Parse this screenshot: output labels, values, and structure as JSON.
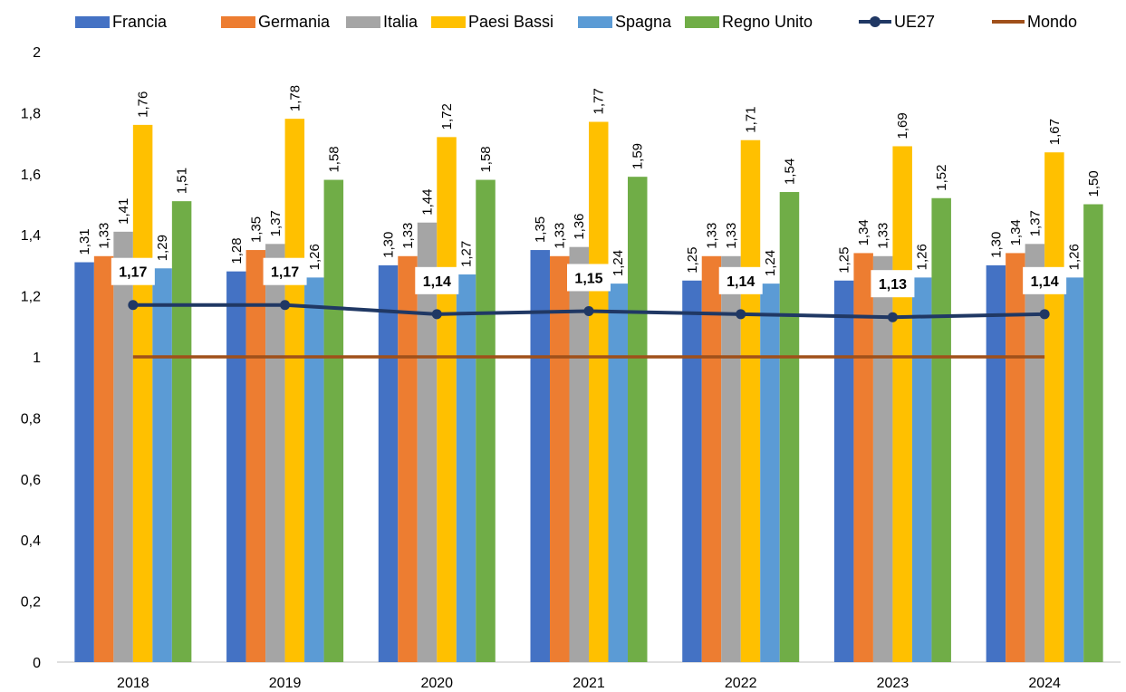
{
  "chart_data": {
    "type": "bar",
    "categories": [
      "2018",
      "2019",
      "2020",
      "2021",
      "2022",
      "2023",
      "2024"
    ],
    "series": [
      {
        "name": "Francia",
        "type": "bar",
        "color": "#4472C4",
        "values": [
          1.31,
          1.28,
          1.3,
          1.35,
          1.25,
          1.25,
          1.3
        ],
        "labels": [
          "1,31",
          "1,28",
          "1,30",
          "1,35",
          "1,25",
          "1,25",
          "1,30"
        ]
      },
      {
        "name": "Germania",
        "type": "bar",
        "color": "#ED7D31",
        "values": [
          1.33,
          1.35,
          1.33,
          1.33,
          1.33,
          1.34,
          1.34
        ],
        "labels": [
          "1,33",
          "1,35",
          "1,33",
          "1,33",
          "1,33",
          "1,34",
          "1,34"
        ]
      },
      {
        "name": "Italia",
        "type": "bar",
        "color": "#A5A5A5",
        "values": [
          1.41,
          1.37,
          1.44,
          1.36,
          1.33,
          1.33,
          1.37
        ],
        "labels": [
          "1,41",
          "1,37",
          "1,44",
          "1,36",
          "1,33",
          "1,33",
          "1,37"
        ]
      },
      {
        "name": "Paesi Bassi",
        "type": "bar",
        "color": "#FFC000",
        "values": [
          1.76,
          1.78,
          1.72,
          1.77,
          1.71,
          1.69,
          1.67
        ],
        "labels": [
          "1,76",
          "1,78",
          "1,72",
          "1,77",
          "1,71",
          "1,69",
          "1,67"
        ]
      },
      {
        "name": "Spagna",
        "type": "bar",
        "color": "#5B9BD5",
        "values": [
          1.29,
          1.26,
          1.27,
          1.24,
          1.24,
          1.26,
          1.26
        ],
        "labels": [
          "1,29",
          "1,26",
          "1,27",
          "1,24",
          "1,24",
          "1,26",
          "1,26"
        ]
      },
      {
        "name": "Regno Unito",
        "type": "bar",
        "color": "#70AD47",
        "values": [
          1.51,
          1.58,
          1.58,
          1.59,
          1.54,
          1.52,
          1.5
        ],
        "labels": [
          "1,51",
          "1,58",
          "1,58",
          "1,59",
          "1,54",
          "1,52",
          "1,50"
        ]
      },
      {
        "name": "UE27",
        "type": "line",
        "markers": true,
        "color": "#203864",
        "values": [
          1.17,
          1.17,
          1.14,
          1.15,
          1.14,
          1.13,
          1.14
        ],
        "labels": [
          "1,17",
          "1,17",
          "1,14",
          "1,15",
          "1,14",
          "1,13",
          "1,14"
        ]
      },
      {
        "name": "Mondo",
        "type": "line",
        "markers": false,
        "color": "#A0501A",
        "values": [
          1,
          1,
          1,
          1,
          1,
          1,
          1
        ]
      }
    ],
    "y_ticks": [
      {
        "value": 0,
        "label": "0"
      },
      {
        "value": 0.2,
        "label": "0,2"
      },
      {
        "value": 0.4,
        "label": "0,4"
      },
      {
        "value": 0.6,
        "label": "0,6"
      },
      {
        "value": 0.8,
        "label": "0,8"
      },
      {
        "value": 1,
        "label": "1"
      },
      {
        "value": 1.2,
        "label": "1,2"
      },
      {
        "value": 1.4,
        "label": "1,4"
      },
      {
        "value": 1.6,
        "label": "1,6"
      },
      {
        "value": 1.8,
        "label": "1,8"
      },
      {
        "value": 2,
        "label": "2"
      }
    ],
    "ylim": [
      0,
      2
    ],
    "title": "",
    "xlabel": "",
    "ylabel": "",
    "grid": false,
    "legend_position": "top"
  }
}
